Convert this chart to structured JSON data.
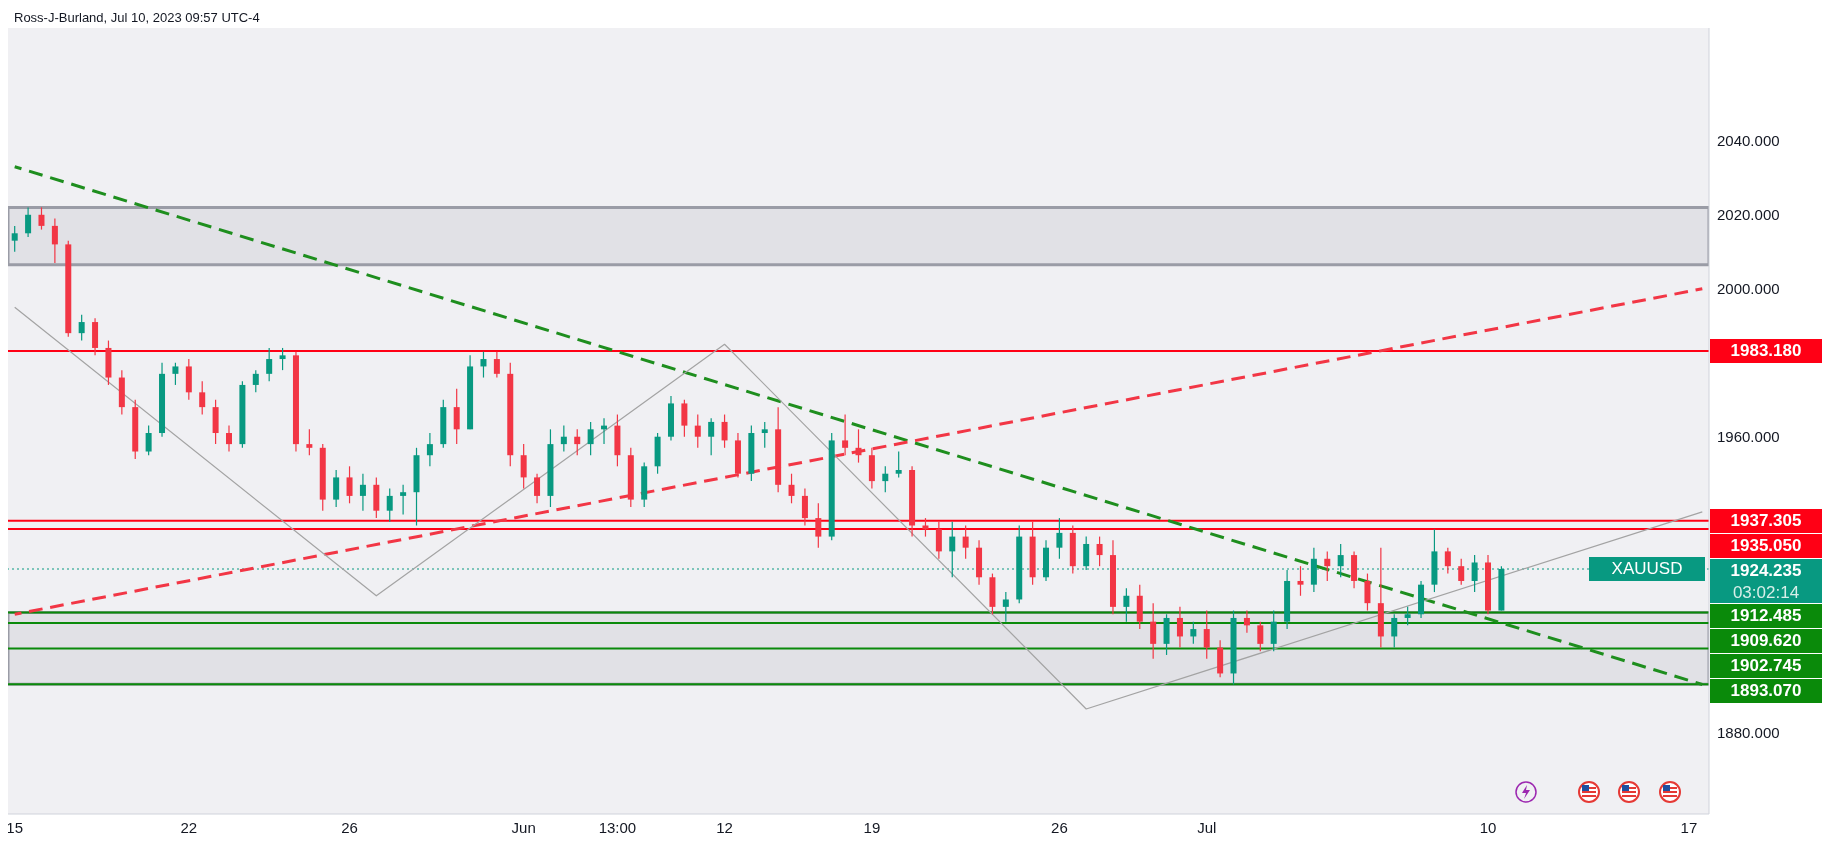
{
  "chart_data": {
    "type": "candlestick",
    "title": "Ross-J-Burland, Jul 10, 2023 09:57 UTC-4",
    "categories": [
      "15",
      null,
      null,
      null,
      null,
      null,
      null,
      null,
      null,
      null,
      null,
      null,
      null,
      "22",
      null,
      null,
      null,
      null,
      null,
      null,
      null,
      null,
      null,
      null,
      null,
      "26",
      null,
      null,
      null,
      null,
      null,
      null,
      null,
      null,
      null,
      null,
      null,
      null,
      "Jun",
      null,
      null,
      null,
      null,
      null,
      null,
      "13:00",
      null,
      null,
      null,
      null,
      null,
      null,
      null,
      "12",
      null,
      null,
      null,
      null,
      null,
      null,
      null,
      null,
      null,
      null,
      "19",
      null,
      null,
      null,
      null,
      null,
      null,
      null,
      null,
      null,
      null,
      null,
      null,
      null,
      "26",
      null,
      null,
      null,
      null,
      null,
      null,
      null,
      null,
      null,
      null,
      "Jul",
      null,
      null,
      null,
      null,
      null,
      null,
      null,
      null,
      null,
      null,
      null,
      null,
      null,
      null,
      null,
      null,
      null,
      null,
      null,
      null,
      "10",
      null,
      null,
      null,
      null,
      null,
      null,
      null,
      null,
      null,
      null,
      null,
      null,
      null,
      null,
      "17",
      null
    ],
    "ylim": [
      1858,
      2070.5
    ],
    "yticks": [
      {
        "value": 1880,
        "label": "1880.000"
      },
      {
        "value": 1960,
        "label": "1960.000"
      },
      {
        "value": 2000,
        "label": "2000.000"
      },
      {
        "value": 2020,
        "label": "2020.000"
      },
      {
        "value": 2040,
        "label": "2040.000"
      }
    ],
    "series": [
      {
        "ohlc": [
          [
            2013,
            2017,
            2010,
            2015
          ],
          [
            2015,
            2022,
            2014,
            2020
          ],
          [
            2020,
            2022,
            2016,
            2017
          ],
          [
            2017,
            2019,
            2007,
            2012
          ],
          [
            2012,
            2013,
            1987,
            1988
          ],
          [
            1988,
            1993,
            1986,
            1991
          ],
          [
            1991,
            1992,
            1982,
            1984
          ],
          [
            1984,
            1986,
            1974,
            1976
          ],
          [
            1976,
            1978,
            1966,
            1968
          ],
          [
            1968,
            1970,
            1954,
            1956
          ],
          [
            1956,
            1963,
            1955,
            1961
          ],
          [
            1961,
            1980,
            1960,
            1977
          ],
          [
            1977,
            1980,
            1974,
            1979
          ],
          [
            1979,
            1981,
            1970,
            1972
          ],
          [
            1972,
            1975,
            1966,
            1968
          ],
          [
            1968,
            1970,
            1958,
            1961
          ],
          [
            1961,
            1963,
            1956,
            1958
          ],
          [
            1958,
            1975,
            1957,
            1974
          ],
          [
            1974,
            1978,
            1972,
            1977
          ],
          [
            1977,
            1984,
            1975,
            1981
          ],
          [
            1981,
            1984,
            1978,
            1982
          ],
          [
            1982,
            1983,
            1956,
            1958
          ],
          [
            1958,
            1962,
            1955,
            1957
          ],
          [
            1957,
            1958,
            1940,
            1943
          ],
          [
            1943,
            1951,
            1941,
            1949
          ],
          [
            1949,
            1952,
            1942,
            1944
          ],
          [
            1944,
            1950,
            1940,
            1947
          ],
          [
            1947,
            1949,
            1938,
            1940
          ],
          [
            1940,
            1946,
            1937,
            1944
          ],
          [
            1944,
            1947,
            1939,
            1945
          ],
          [
            1945,
            1957,
            1936,
            1955
          ],
          [
            1955,
            1961,
            1952,
            1958
          ],
          [
            1958,
            1970,
            1957,
            1968
          ],
          [
            1968,
            1973,
            1958,
            1962
          ],
          [
            1962,
            1982,
            1962,
            1979
          ],
          [
            1979,
            1983,
            1976,
            1981
          ],
          [
            1981,
            1983,
            1976,
            1977
          ],
          [
            1977,
            1980,
            1952,
            1955
          ],
          [
            1955,
            1958,
            1946,
            1949
          ],
          [
            1949,
            1950,
            1942,
            1944
          ],
          [
            1944,
            1962,
            1941,
            1958
          ],
          [
            1958,
            1963,
            1956,
            1960
          ],
          [
            1960,
            1962,
            1955,
            1958
          ],
          [
            1958,
            1964,
            1955,
            1962
          ],
          [
            1962,
            1965,
            1958,
            1963
          ],
          [
            1963,
            1966,
            1952,
            1955
          ],
          [
            1955,
            1957,
            1941,
            1943
          ],
          [
            1943,
            1953,
            1941,
            1952
          ],
          [
            1952,
            1961,
            1950,
            1960
          ],
          [
            1960,
            1971,
            1959,
            1969
          ],
          [
            1969,
            1970,
            1960,
            1963
          ],
          [
            1963,
            1966,
            1957,
            1960
          ],
          [
            1960,
            1965,
            1955,
            1964
          ],
          [
            1964,
            1966,
            1957,
            1959
          ],
          [
            1959,
            1961,
            1949,
            1950
          ],
          [
            1950,
            1963,
            1948,
            1961
          ],
          [
            1961,
            1964,
            1957,
            1962
          ],
          [
            1962,
            1968,
            1945,
            1947
          ],
          [
            1947,
            1950,
            1942,
            1944
          ],
          [
            1944,
            1946,
            1936,
            1938
          ],
          [
            1938,
            1942,
            1930,
            1933
          ],
          [
            1933,
            1961,
            1932,
            1959
          ],
          [
            1959,
            1966,
            1955,
            1957
          ],
          [
            1957,
            1962,
            1953,
            1955
          ],
          [
            1955,
            1957,
            1946,
            1948
          ],
          [
            1948,
            1952,
            1945,
            1950
          ],
          [
            1950,
            1956,
            1949,
            1951
          ],
          [
            1951,
            1952,
            1933,
            1936
          ],
          [
            1936,
            1938,
            1933,
            1935
          ],
          [
            1935,
            1937,
            1927,
            1929
          ],
          [
            1929,
            1937,
            1922,
            1933
          ],
          [
            1933,
            1936,
            1927,
            1930
          ],
          [
            1930,
            1932,
            1920,
            1922
          ],
          [
            1922,
            1923,
            1912,
            1914
          ],
          [
            1914,
            1918,
            1910,
            1916
          ],
          [
            1916,
            1936,
            1915,
            1933
          ],
          [
            1933,
            1937,
            1920,
            1922
          ],
          [
            1922,
            1932,
            1921,
            1930
          ],
          [
            1930,
            1938,
            1927,
            1934
          ],
          [
            1934,
            1936,
            1923,
            1925
          ],
          [
            1925,
            1933,
            1924,
            1931
          ],
          [
            1931,
            1933,
            1925,
            1928
          ],
          [
            1928,
            1932,
            1912,
            1914
          ],
          [
            1914,
            1919,
            1910,
            1917
          ],
          [
            1917,
            1920,
            1908,
            1910
          ],
          [
            1910,
            1915,
            1900,
            1904
          ],
          [
            1904,
            1912,
            1901,
            1911
          ],
          [
            1911,
            1914,
            1903,
            1906
          ],
          [
            1906,
            1910,
            1904,
            1908
          ],
          [
            1908,
            1913,
            1900,
            1903
          ],
          [
            1903,
            1905,
            1895,
            1896
          ],
          [
            1896,
            1913,
            1893,
            1911
          ],
          [
            1911,
            1913,
            1907,
            1909
          ],
          [
            1909,
            1910,
            1902,
            1904
          ],
          [
            1904,
            1913,
            1902,
            1910
          ],
          [
            1910,
            1924,
            1908,
            1921
          ],
          [
            1921,
            1925,
            1917,
            1920
          ],
          [
            1920,
            1930,
            1918,
            1927
          ],
          [
            1927,
            1929,
            1921,
            1925
          ],
          [
            1925,
            1931,
            1922,
            1928
          ],
          [
            1928,
            1929,
            1919,
            1921
          ],
          [
            1921,
            1923,
            1913,
            1915
          ],
          [
            1915,
            1930,
            1903,
            1906
          ],
          [
            1906,
            1912,
            1903,
            1911
          ],
          [
            1911,
            1914,
            1909,
            1912
          ],
          [
            1912,
            1921,
            1911,
            1920
          ],
          [
            1920,
            1935,
            1918,
            1929
          ],
          [
            1929,
            1930,
            1923,
            1925
          ],
          [
            1925,
            1927,
            1920,
            1921
          ],
          [
            1921,
            1928,
            1918,
            1926
          ],
          [
            1926,
            1928,
            1912,
            1913
          ],
          [
            1913,
            1925,
            1913,
            1924.235
          ],
          null,
          null,
          null,
          null,
          null,
          null,
          null,
          null,
          null,
          null,
          null,
          null,
          null,
          null,
          null
        ],
        "colors": [
          "#089981",
          "#089981",
          "#f23645",
          "#f23645",
          "#f23645",
          "#089981",
          "#f23645",
          "#f23645",
          "#f23645",
          "#f23645",
          "#089981",
          "#089981",
          "#089981",
          "#f23645",
          "#f23645",
          "#f23645",
          "#f23645",
          "#089981",
          "#089981",
          "#089981",
          "#089981",
          "#f23645",
          "#f23645",
          "#f23645",
          "#089981",
          "#f23645",
          "#089981",
          "#f23645",
          "#089981",
          "#089981",
          "#089981",
          "#089981",
          "#089981",
          "#f23645",
          "#089981",
          "#089981",
          "#f23645",
          "#f23645",
          "#f23645",
          "#f23645",
          "#089981",
          "#089981",
          "#f23645",
          "#089981",
          "#089981",
          "#f23645",
          "#f23645",
          "#089981",
          "#089981",
          "#089981",
          "#f23645",
          "#f23645",
          "#089981",
          "#f23645",
          "#f23645",
          "#089981",
          "#089981",
          "#f23645",
          "#f23645",
          "#f23645",
          "#f23645",
          "#089981",
          "#f23645",
          "#f23645",
          "#f23645",
          "#089981",
          "#089981",
          "#f23645",
          "#f23645",
          "#f23645",
          "#089981",
          "#f23645",
          "#f23645",
          "#f23645",
          "#089981",
          "#089981",
          "#f23645",
          "#089981",
          "#089981",
          "#f23645",
          "#089981",
          "#f23645",
          "#f23645",
          "#089981",
          "#f23645",
          "#f23645",
          "#089981",
          "#f23645",
          "#089981",
          "#f23645",
          "#f23645",
          "#089981",
          "#f23645",
          "#f23645",
          "#089981",
          "#089981",
          "#f23645",
          "#089981",
          "#f23645",
          "#089981",
          "#f23645",
          "#f23645",
          "#f23645",
          "#089981",
          "#089981",
          "#089981",
          "#089981",
          "#f23645",
          "#f23645",
          "#089981",
          "#f23645",
          "#089981",
          null,
          null,
          null,
          null,
          null,
          null,
          null,
          null,
          null,
          null,
          null,
          null,
          null,
          null,
          null
        ]
      },
      {
        "type": "line",
        "values": [
          2033,
          null,
          null,
          null,
          null,
          null,
          null,
          null,
          null,
          null,
          null,
          null,
          null,
          null,
          null,
          null,
          null,
          null,
          null,
          null,
          null,
          null,
          null,
          null,
          null,
          null,
          null,
          null,
          null,
          null,
          null,
          null,
          null,
          null,
          null,
          null,
          null,
          null,
          null,
          null,
          null,
          null,
          null,
          null,
          null,
          null,
          null,
          null,
          null,
          null,
          null,
          null,
          null,
          null,
          null,
          null,
          null,
          null,
          null,
          null,
          null,
          null,
          null,
          null,
          null,
          null,
          null,
          null,
          null,
          null,
          null,
          null,
          null,
          null,
          null,
          null,
          null,
          null,
          null,
          null,
          null,
          null,
          null,
          null,
          null,
          null,
          null,
          null,
          null,
          null,
          null,
          null,
          null,
          null,
          null,
          null,
          null,
          null,
          null,
          null,
          null,
          null,
          null,
          null,
          null,
          null,
          null,
          null,
          null,
          null,
          null,
          null,
          null,
          null,
          null,
          null,
          null,
          null,
          null,
          null,
          null,
          null,
          null,
          null,
          null,
          null,
          1893
        ],
        "color": "#1e8e1e",
        "line_style": "dashed"
      },
      {
        "type": "line",
        "values": [
          1912,
          null,
          null,
          null,
          null,
          null,
          null,
          null,
          null,
          null,
          null,
          null,
          null,
          null,
          null,
          null,
          null,
          null,
          null,
          null,
          null,
          null,
          null,
          null,
          null,
          null,
          null,
          null,
          null,
          null,
          null,
          null,
          null,
          null,
          null,
          null,
          null,
          null,
          null,
          null,
          null,
          null,
          null,
          null,
          null,
          null,
          null,
          null,
          null,
          null,
          null,
          null,
          null,
          null,
          null,
          null,
          null,
          null,
          null,
          null,
          null,
          null,
          null,
          null,
          null,
          null,
          null,
          null,
          null,
          null,
          null,
          null,
          null,
          null,
          null,
          null,
          null,
          null,
          null,
          null,
          null,
          null,
          null,
          null,
          null,
          null,
          null,
          null,
          null,
          null,
          null,
          null,
          null,
          null,
          null,
          null,
          null,
          null,
          null,
          null,
          null,
          null,
          null,
          null,
          null,
          null,
          null,
          null,
          null,
          null,
          null,
          null,
          null,
          null,
          null,
          null,
          null,
          null,
          null,
          null,
          null,
          null,
          null,
          null,
          null,
          null,
          2000
        ],
        "color": "#f23645",
        "line_style": "dashed"
      },
      {
        "type": "line",
        "values": [
          1995,
          null,
          null,
          null,
          null,
          null,
          null,
          null,
          null,
          null,
          null,
          null,
          null,
          null,
          null,
          null,
          null,
          null,
          null,
          null,
          null,
          null,
          null,
          null,
          null,
          null,
          null,
          1917,
          null,
          null,
          null,
          null,
          null,
          null,
          null,
          null,
          null,
          null,
          null,
          null,
          null,
          null,
          null,
          null,
          null,
          null,
          null,
          null,
          null,
          null,
          null,
          null,
          null,
          1985,
          null,
          null,
          null,
          null,
          null,
          null,
          null,
          null,
          null,
          null,
          null,
          null,
          null,
          null,
          null,
          null,
          null,
          null,
          null,
          null,
          null,
          null,
          null,
          null,
          null,
          null,
          1886.4,
          null,
          null,
          null,
          null,
          null,
          null,
          null,
          null,
          null,
          null,
          null,
          null,
          null,
          null,
          null,
          null,
          null,
          null,
          null,
          null,
          null,
          null,
          null,
          null,
          null,
          null,
          null,
          null,
          null,
          null,
          null,
          null,
          null,
          null,
          null,
          null,
          null,
          null,
          null,
          null,
          null,
          null,
          null,
          null,
          null,
          1939.7
        ],
        "color": "#a3a3a3",
        "line_style": "solid"
      }
    ],
    "bands": [
      {
        "axis": "y",
        "from": 2006.5,
        "to": 2022,
        "color": "#e1e1e6"
      },
      {
        "axis": "y",
        "from": 1893.07,
        "to": 1912.485,
        "color": "#e1e1e6"
      }
    ],
    "ref_lines": [
      {
        "axis": "y",
        "value": 1983.18,
        "label": "1983.180",
        "color": "#ff0015"
      },
      {
        "axis": "y",
        "value": 1937.305,
        "label": "1937.305",
        "color": "#ff0015"
      },
      {
        "axis": "y",
        "value": 1935.05,
        "label": "1935.050",
        "color": "#ff0015"
      },
      {
        "axis": "y",
        "value": 1924.235,
        "label": "1924.235",
        "color": "#089981",
        "line_style": "dotted"
      },
      {
        "axis": "y",
        "value": 1912.485,
        "label": "1912.485",
        "color": "#0a8a0a"
      },
      {
        "axis": "y",
        "value": 1909.62,
        "label": "1909.620",
        "color": "#0a8a0a"
      },
      {
        "axis": "y",
        "value": 1902.745,
        "label": "1902.745",
        "color": "#0a8a0a"
      },
      {
        "axis": "y",
        "value": 1893.07,
        "label": "1893.070",
        "color": "#0a8a0a"
      }
    ],
    "annotations": [
      "XAUUSD",
      "03:02:14"
    ]
  }
}
